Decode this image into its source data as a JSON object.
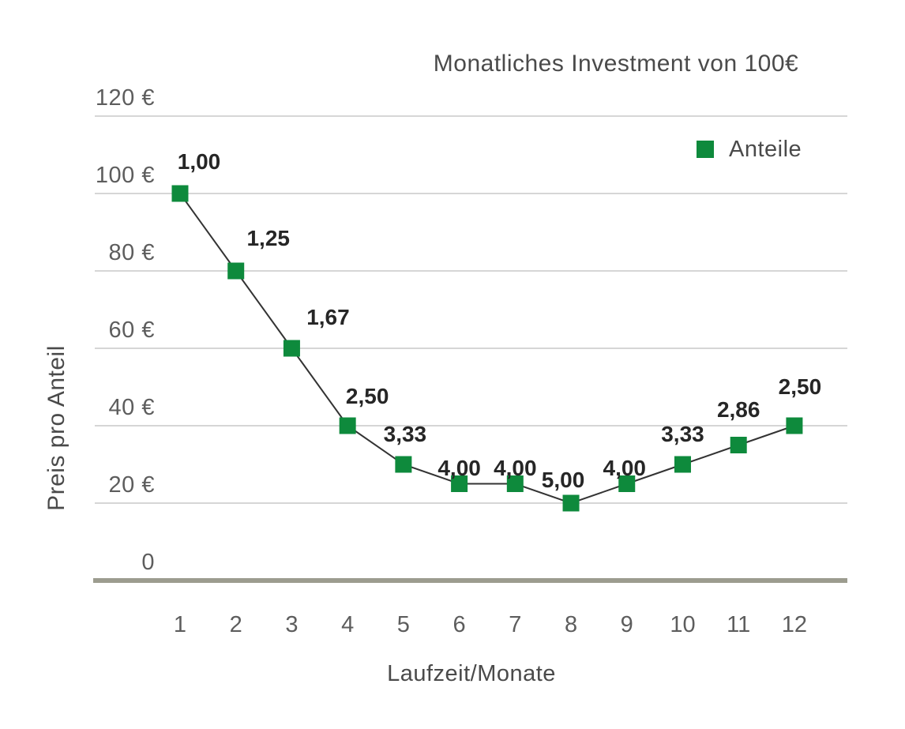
{
  "page": {
    "background": "#ffffff"
  },
  "chart_data": {
    "type": "line",
    "title": "Monatliches Investment von 100€",
    "xlabel": "Laufzeit/Monate",
    "ylabel": "Preis pro Anteil",
    "legend_position": "top-right",
    "legend": [
      {
        "label": "Anteile",
        "marker": "filled-square",
        "color": "#0e8a3c"
      }
    ],
    "x_categories": [
      "1",
      "2",
      "3",
      "4",
      "5",
      "6",
      "7",
      "8",
      "9",
      "10",
      "11",
      "12"
    ],
    "series": [
      {
        "name": "Anteile",
        "price_per_share_eur": [
          100,
          80,
          60,
          40,
          30,
          25,
          25,
          20,
          25,
          30,
          35,
          40
        ],
        "point_labels_shares": [
          "1,00",
          "1,25",
          "1,67",
          "2,50",
          "3,33",
          "4,00",
          "4,00",
          "5,00",
          "4,00",
          "3,33",
          "2,86",
          "2,50"
        ]
      }
    ],
    "yticks": [
      {
        "value": 120,
        "label": "120 €"
      },
      {
        "value": 100,
        "label": "100 €"
      },
      {
        "value": 80,
        "label": "80 €"
      },
      {
        "value": 60,
        "label": "60 €"
      },
      {
        "value": 40,
        "label": "40 €"
      },
      {
        "value": 20,
        "label": "20 €"
      },
      {
        "value": 0,
        "label": "0"
      }
    ],
    "ylim": [
      0,
      120
    ],
    "grid": "horizontal",
    "marker_style": "filled-square",
    "layout_hints": {
      "label_dx": [
        24,
        41,
        46,
        25,
        2,
        0,
        0,
        -10,
        -3,
        0,
        0,
        7
      ],
      "label_dy": [
        5,
        4,
        6,
        8,
        7,
        25,
        25,
        16,
        25,
        7,
        0,
        -4
      ]
    }
  },
  "colors": {
    "marker": "#0e8a3c",
    "line": "#333333",
    "grid": "#c8c8c8",
    "axis_baseline": "#9c9c8f",
    "tick_text": "#5d5d5d",
    "title_text": "#4a4a4a",
    "data_label_text": "#262626"
  }
}
